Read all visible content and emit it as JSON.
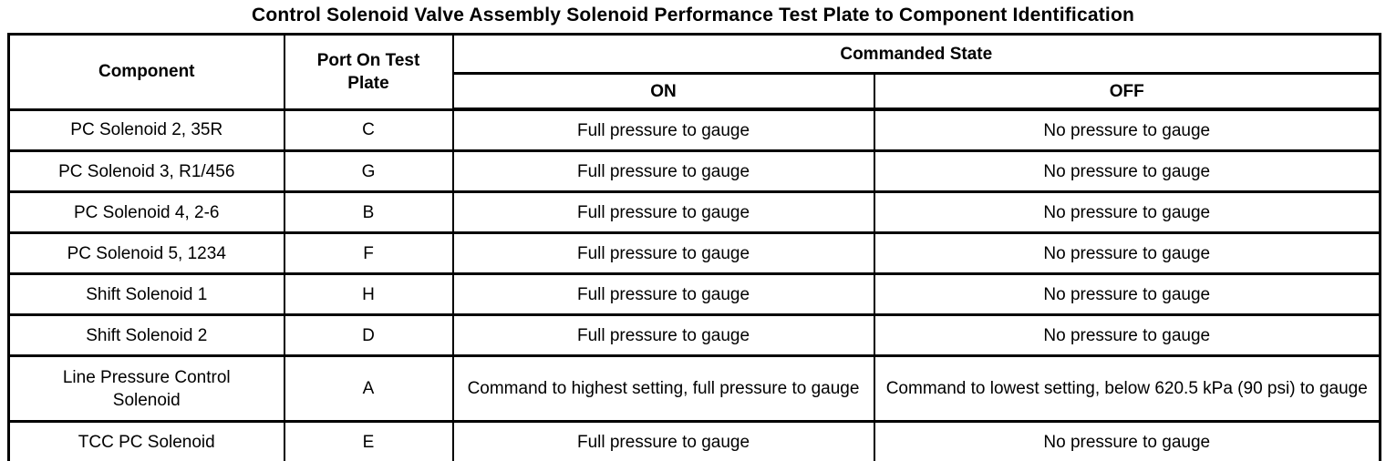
{
  "title": "Control Solenoid Valve Assembly Solenoid Performance Test Plate to Component Identification",
  "table": {
    "headers": {
      "component": "Component",
      "port": "Port On Test Plate",
      "commanded_state": "Commanded State",
      "on": "ON",
      "off": "OFF"
    },
    "rows": [
      {
        "component": "PC Solenoid 2, 35R",
        "port": "C",
        "on": "Full pressure to gauge",
        "off": "No pressure to gauge"
      },
      {
        "component": "PC Solenoid 3, R1/456",
        "port": "G",
        "on": "Full pressure to gauge",
        "off": "No pressure to gauge"
      },
      {
        "component": "PC Solenoid 4, 2-6",
        "port": "B",
        "on": "Full pressure to gauge",
        "off": "No pressure to gauge"
      },
      {
        "component": "PC Solenoid 5, 1234",
        "port": "F",
        "on": "Full pressure to gauge",
        "off": "No pressure to gauge"
      },
      {
        "component": "Shift Solenoid 1",
        "port": "H",
        "on": "Full pressure to gauge",
        "off": "No pressure to gauge"
      },
      {
        "component": "Shift Solenoid 2",
        "port": "D",
        "on": "Full pressure to gauge",
        "off": "No pressure to gauge"
      },
      {
        "component": "Line Pressure Control Solenoid",
        "port": "A",
        "on": "Command to highest setting, full pressure to gauge",
        "off": "Command to lowest setting, below 620.5 kPa (90 psi) to gauge"
      },
      {
        "component": "TCC PC Solenoid",
        "port": "E",
        "on": "Full pressure to gauge",
        "off": "No pressure to gauge"
      }
    ]
  },
  "colors": {
    "border": "#000000",
    "background": "#ffffff",
    "text": "#000000"
  }
}
